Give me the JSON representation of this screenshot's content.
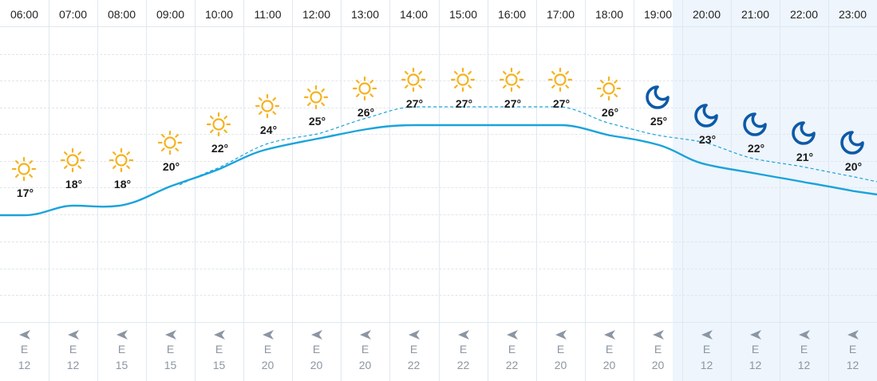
{
  "colors": {
    "sun": "#f5b21e",
    "moon": "#0d5aa7",
    "temp_line": "#1aa3dc",
    "feels_like_line": "#1aa3dc",
    "night_background": "#eef5fc",
    "grid": "#dfe8f0",
    "wind_text": "#8b96a3"
  },
  "hours": [
    {
      "time": "06:00",
      "icon": "sun-icon",
      "temp": "17°",
      "wind_dir": "E",
      "wind_speed": "12",
      "night": false
    },
    {
      "time": "07:00",
      "icon": "sun-icon",
      "temp": "18°",
      "wind_dir": "E",
      "wind_speed": "12",
      "night": false
    },
    {
      "time": "08:00",
      "icon": "sun-icon",
      "temp": "18°",
      "wind_dir": "E",
      "wind_speed": "15",
      "night": false
    },
    {
      "time": "09:00",
      "icon": "sun-icon",
      "temp": "20°",
      "wind_dir": "E",
      "wind_speed": "15",
      "night": false
    },
    {
      "time": "10:00",
      "icon": "sun-icon",
      "temp": "22°",
      "wind_dir": "E",
      "wind_speed": "15",
      "night": false
    },
    {
      "time": "11:00",
      "icon": "sun-icon",
      "temp": "24°",
      "wind_dir": "E",
      "wind_speed": "20",
      "night": false
    },
    {
      "time": "12:00",
      "icon": "sun-icon",
      "temp": "25°",
      "wind_dir": "E",
      "wind_speed": "20",
      "night": false
    },
    {
      "time": "13:00",
      "icon": "sun-icon",
      "temp": "26°",
      "wind_dir": "E",
      "wind_speed": "20",
      "night": false
    },
    {
      "time": "14:00",
      "icon": "sun-icon",
      "temp": "27°",
      "wind_dir": "E",
      "wind_speed": "22",
      "night": false
    },
    {
      "time": "15:00",
      "icon": "sun-icon",
      "temp": "27°",
      "wind_dir": "E",
      "wind_speed": "22",
      "night": false
    },
    {
      "time": "16:00",
      "icon": "sun-icon",
      "temp": "27°",
      "wind_dir": "E",
      "wind_speed": "22",
      "night": false
    },
    {
      "time": "17:00",
      "icon": "sun-icon",
      "temp": "27°",
      "wind_dir": "E",
      "wind_speed": "20",
      "night": false
    },
    {
      "time": "18:00",
      "icon": "sun-icon",
      "temp": "26°",
      "wind_dir": "E",
      "wind_speed": "20",
      "night": false
    },
    {
      "time": "19:00",
      "icon": "moon-icon",
      "temp": "25°",
      "wind_dir": "E",
      "wind_speed": "20",
      "night": false
    },
    {
      "time": "20:00",
      "icon": "moon-icon",
      "temp": "23°",
      "wind_dir": "E",
      "wind_speed": "12",
      "night": true
    },
    {
      "time": "21:00",
      "icon": "moon-icon",
      "temp": "22°",
      "wind_dir": "E",
      "wind_speed": "12",
      "night": true
    },
    {
      "time": "22:00",
      "icon": "moon-icon",
      "temp": "21°",
      "wind_dir": "E",
      "wind_speed": "12",
      "night": true
    },
    {
      "time": "23:00",
      "icon": "moon-icon",
      "temp": "20°",
      "wind_dir": "E",
      "wind_speed": "12",
      "night": true
    }
  ]
}
